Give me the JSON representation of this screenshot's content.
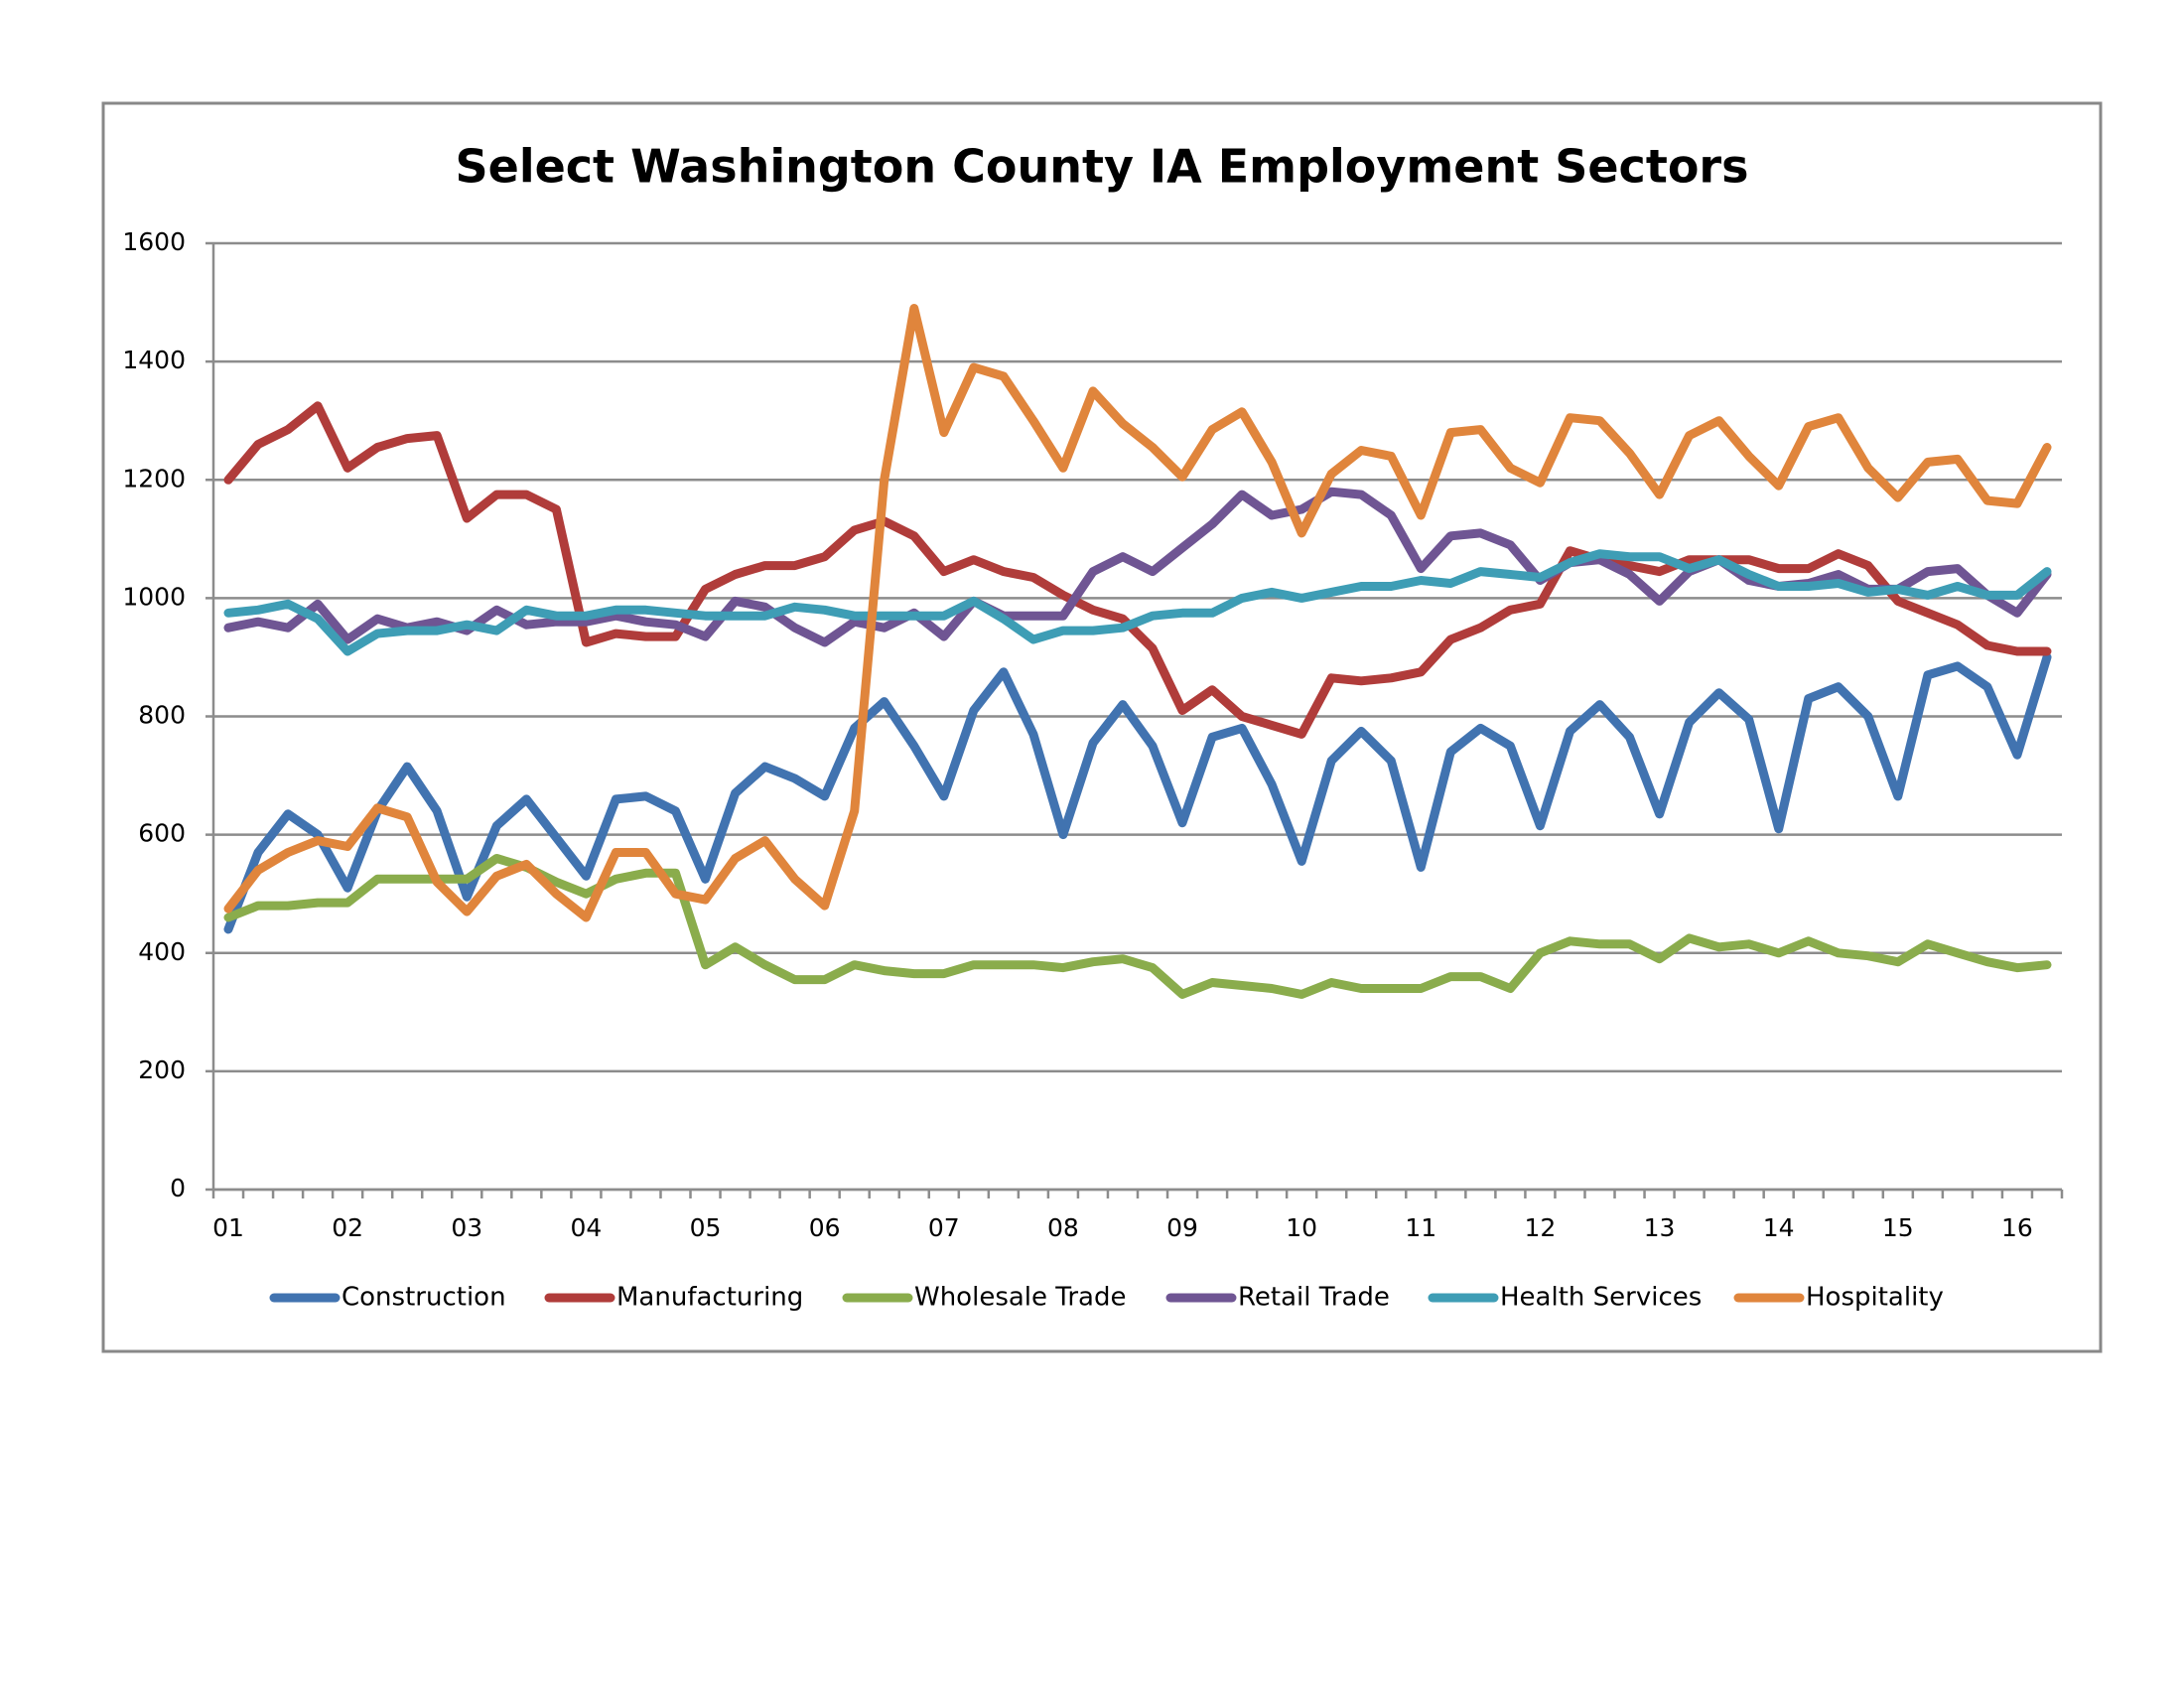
{
  "chart_data": {
    "type": "line",
    "title": "Select Washington County IA Employment Sectors",
    "categories": [
      "01",
      null,
      null,
      null,
      "02",
      null,
      null,
      null,
      "03",
      null,
      null,
      null,
      "04",
      null,
      null,
      null,
      "05",
      null,
      null,
      null,
      "06",
      null,
      null,
      null,
      "07",
      null,
      null,
      null,
      "08",
      null,
      null,
      null,
      "09",
      null,
      null,
      null,
      "10",
      null,
      null,
      null,
      "11",
      null,
      null,
      null,
      "12",
      null,
      null,
      null,
      "13",
      null,
      null,
      null,
      "14",
      null,
      null,
      null,
      "15",
      null,
      null,
      null,
      "16",
      null
    ],
    "ylim": [
      0,
      1600
    ],
    "yticks": [
      0,
      200,
      400,
      600,
      800,
      1000,
      1200,
      1400,
      1600
    ],
    "grid": true,
    "legend": "bottom",
    "series": [
      {
        "name": "Construction",
        "color": "#4173b0",
        "values": [
          440,
          570,
          635,
          600,
          510,
          640,
          715,
          640,
          495,
          615,
          660,
          595,
          530,
          660,
          665,
          640,
          525,
          670,
          715,
          695,
          665,
          780,
          825,
          750,
          665,
          810,
          875,
          770,
          600,
          755,
          820,
          750,
          620,
          765,
          780,
          685,
          555,
          725,
          775,
          725,
          545,
          740,
          780,
          750,
          615,
          775,
          820,
          765,
          635,
          790,
          840,
          795,
          610,
          830,
          850,
          800,
          665,
          870,
          885,
          850,
          735,
          900
        ]
      },
      {
        "name": "Manufacturing",
        "color": "#b03c3a",
        "values": [
          1200,
          1260,
          1285,
          1325,
          1220,
          1255,
          1270,
          1275,
          1135,
          1175,
          1175,
          1150,
          925,
          940,
          935,
          935,
          1015,
          1040,
          1055,
          1055,
          1070,
          1115,
          1130,
          1105,
          1045,
          1065,
          1045,
          1035,
          1005,
          980,
          965,
          915,
          810,
          845,
          800,
          785,
          770,
          865,
          860,
          865,
          875,
          930,
          950,
          980,
          990,
          1080,
          1065,
          1055,
          1045,
          1065,
          1065,
          1065,
          1050,
          1050,
          1075,
          1055,
          995,
          975,
          955,
          920,
          910,
          910
        ]
      },
      {
        "name": "Wholesale Trade",
        "color": "#8aac4c",
        "values": [
          460,
          480,
          480,
          485,
          485,
          525,
          525,
          525,
          525,
          560,
          545,
          520,
          500,
          525,
          535,
          535,
          380,
          410,
          380,
          355,
          355,
          380,
          370,
          365,
          365,
          380,
          380,
          380,
          375,
          385,
          390,
          375,
          330,
          350,
          345,
          340,
          330,
          350,
          340,
          340,
          340,
          360,
          360,
          340,
          400,
          420,
          415,
          415,
          390,
          425,
          410,
          415,
          400,
          420,
          400,
          395,
          385,
          415,
          400,
          385,
          375,
          380
        ]
      },
      {
        "name": "Retail Trade",
        "color": "#6f5593",
        "values": [
          950,
          960,
          950,
          990,
          930,
          965,
          950,
          960,
          945,
          980,
          955,
          960,
          960,
          970,
          960,
          955,
          935,
          995,
          985,
          950,
          925,
          960,
          950,
          975,
          935,
          995,
          970,
          970,
          970,
          1045,
          1070,
          1045,
          1085,
          1125,
          1175,
          1140,
          1150,
          1180,
          1175,
          1140,
          1050,
          1105,
          1110,
          1090,
          1030,
          1060,
          1065,
          1040,
          995,
          1045,
          1065,
          1030,
          1020,
          1025,
          1040,
          1015,
          1015,
          1045,
          1050,
          1005,
          975,
          1040
        ]
      },
      {
        "name": "Health Services",
        "color": "#3e9db5",
        "values": [
          975,
          980,
          990,
          965,
          910,
          940,
          945,
          945,
          955,
          945,
          980,
          970,
          970,
          980,
          980,
          975,
          970,
          970,
          970,
          985,
          980,
          970,
          970,
          970,
          970,
          995,
          965,
          930,
          945,
          945,
          950,
          970,
          975,
          975,
          1000,
          1010,
          1000,
          1010,
          1020,
          1020,
          1030,
          1025,
          1045,
          1040,
          1035,
          1060,
          1075,
          1070,
          1070,
          1050,
          1065,
          1040,
          1020,
          1020,
          1025,
          1010,
          1015,
          1005,
          1020,
          1005,
          1005,
          1045
        ]
      },
      {
        "name": "Hospitality",
        "color": "#e0853c",
        "values": [
          475,
          540,
          570,
          590,
          580,
          645,
          630,
          520,
          470,
          530,
          550,
          500,
          460,
          570,
          570,
          500,
          490,
          560,
          590,
          525,
          480,
          640,
          1200,
          1490,
          1280,
          1390,
          1375,
          1300,
          1220,
          1350,
          1295,
          1255,
          1205,
          1285,
          1315,
          1230,
          1110,
          1210,
          1250,
          1240,
          1140,
          1280,
          1285,
          1220,
          1195,
          1305,
          1300,
          1245,
          1175,
          1275,
          1300,
          1240,
          1190,
          1290,
          1305,
          1220,
          1170,
          1230,
          1235,
          1165,
          1160,
          1255
        ]
      }
    ]
  }
}
